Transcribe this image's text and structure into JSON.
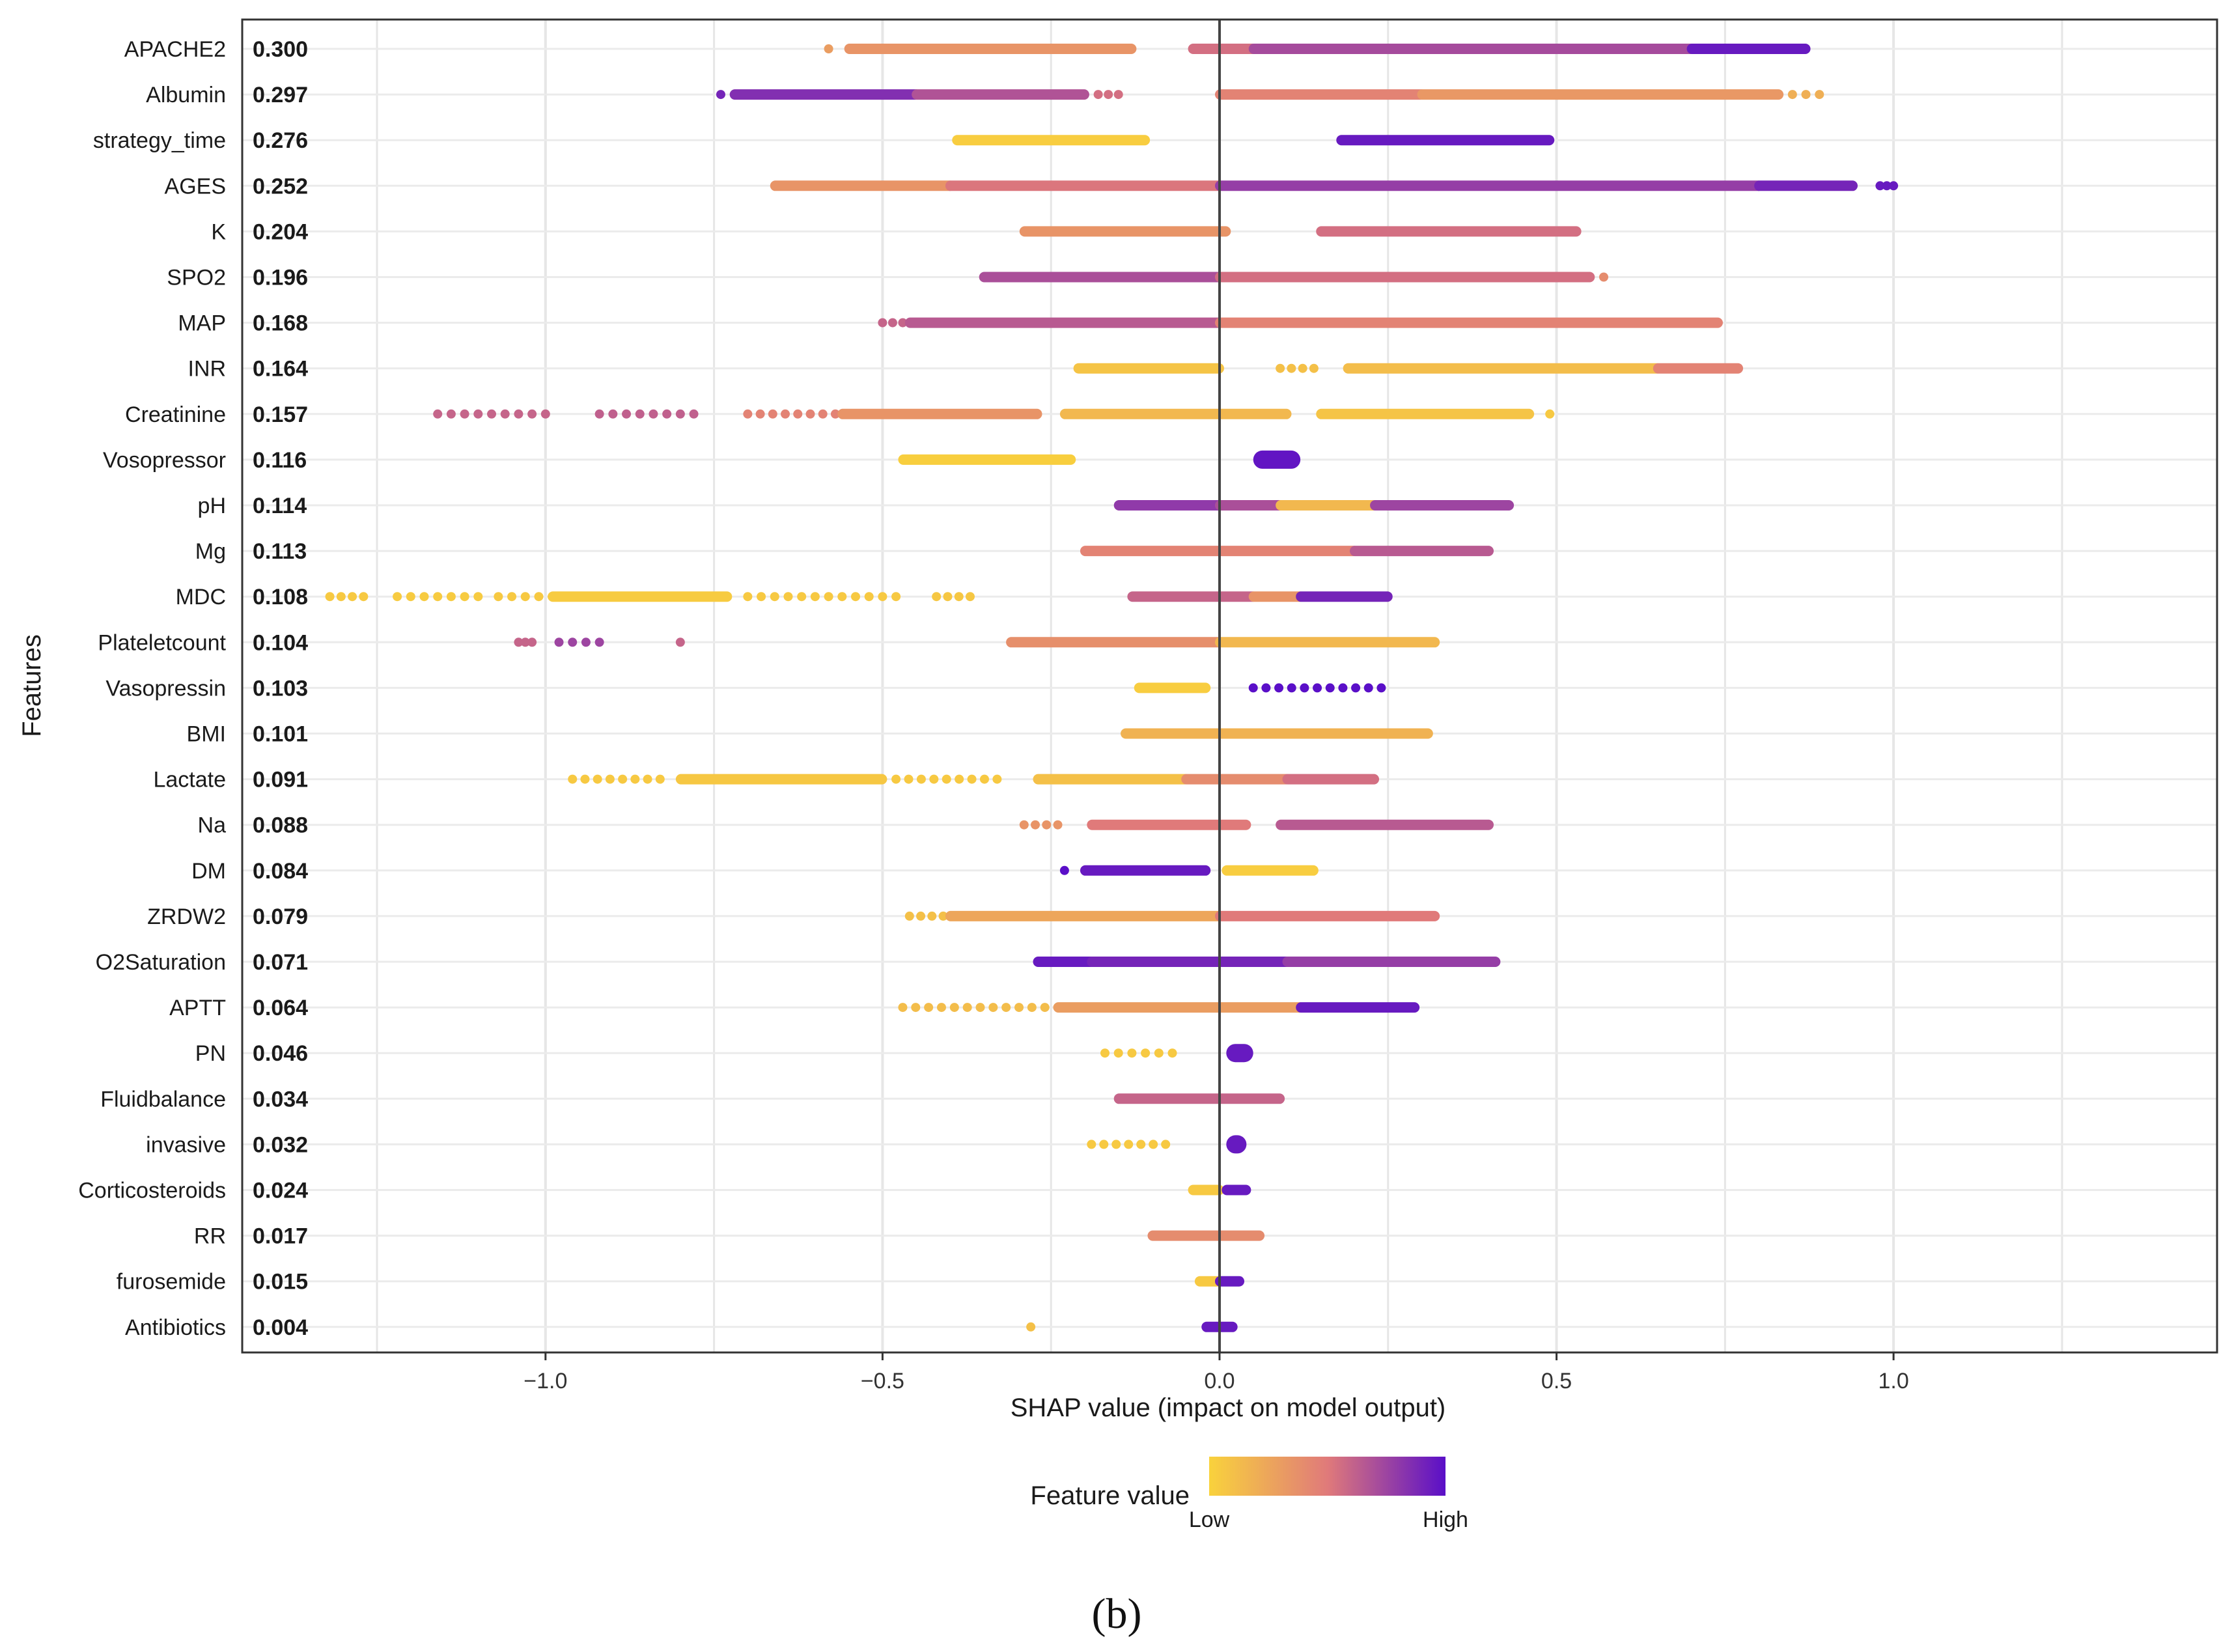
{
  "chart_data": {
    "type": "scatter",
    "subtype": "shap-beeswarm",
    "xlabel": "SHAP value (impact on model output)",
    "ylabel": "Features",
    "xlim": [
      -1.45,
      1.48
    ],
    "xticks": [
      -1.0,
      -0.5,
      0.0,
      0.5,
      1.0
    ],
    "xtick_labels": [
      "−1.0",
      "−0.5",
      "0.0",
      "0.5",
      "1.0"
    ],
    "vertical_line_at": 0.0,
    "grid": true,
    "color_scale": {
      "low": "#f9d23c",
      "mid": "#e07a7a",
      "high": "#5a0fc8"
    },
    "legend": {
      "title": "Feature value",
      "low_label": "Low",
      "high_label": "High",
      "placement": "bottom-center"
    },
    "panel_label": "(b)",
    "features": [
      {
        "name": "APACHE2",
        "importance": "0.300",
        "segments": [
          {
            "from": -0.58,
            "to": -0.58,
            "v": 0.3,
            "kind": "dot"
          },
          {
            "from": -0.55,
            "to": -0.13,
            "v": 0.35
          },
          {
            "from": -0.04,
            "to": 0.05,
            "v": 0.55
          },
          {
            "from": 0.05,
            "to": 0.7,
            "v": 0.72
          },
          {
            "from": 0.7,
            "to": 0.87,
            "v": 0.95
          }
        ]
      },
      {
        "name": "Albumin",
        "importance": "0.297",
        "segments": [
          {
            "from": -0.74,
            "to": -0.74,
            "v": 0.9,
            "kind": "dot"
          },
          {
            "from": -0.72,
            "to": -0.45,
            "v": 0.85
          },
          {
            "from": -0.45,
            "to": -0.2,
            "v": 0.68
          },
          {
            "from": -0.18,
            "to": -0.15,
            "v": 0.55,
            "kind": "dots"
          },
          {
            "from": 0.0,
            "to": 0.3,
            "v": 0.45
          },
          {
            "from": 0.3,
            "to": 0.83,
            "v": 0.33
          },
          {
            "from": 0.85,
            "to": 0.89,
            "v": 0.2,
            "kind": "dots"
          }
        ]
      },
      {
        "name": "strategy_time",
        "importance": "0.276",
        "segments": [
          {
            "from": -0.39,
            "to": -0.11,
            "v": 0.03
          },
          {
            "from": 0.18,
            "to": 0.49,
            "v": 0.95
          }
        ]
      },
      {
        "name": "AGES",
        "importance": "0.252",
        "segments": [
          {
            "from": -0.66,
            "to": -0.4,
            "v": 0.35
          },
          {
            "from": -0.4,
            "to": 0.0,
            "v": 0.52
          },
          {
            "from": 0.0,
            "to": 0.8,
            "v": 0.78
          },
          {
            "from": 0.8,
            "to": 0.94,
            "v": 0.9
          },
          {
            "from": 0.98,
            "to": 1.0,
            "v": 0.95,
            "kind": "dots"
          }
        ]
      },
      {
        "name": "K",
        "importance": "0.204",
        "segments": [
          {
            "from": -0.29,
            "to": 0.01,
            "v": 0.35
          },
          {
            "from": 0.15,
            "to": 0.53,
            "v": 0.55
          }
        ]
      },
      {
        "name": "SPO2",
        "importance": "0.196",
        "segments": [
          {
            "from": -0.35,
            "to": 0.0,
            "v": 0.7
          },
          {
            "from": 0.0,
            "to": 0.55,
            "v": 0.55
          },
          {
            "from": 0.57,
            "to": 0.57,
            "v": 0.4,
            "kind": "dot"
          }
        ]
      },
      {
        "name": "MAP",
        "importance": "0.168",
        "segments": [
          {
            "from": -0.5,
            "to": -0.47,
            "v": 0.6,
            "kind": "dots"
          },
          {
            "from": -0.46,
            "to": 0.0,
            "v": 0.65
          },
          {
            "from": 0.0,
            "to": 0.74,
            "v": 0.45
          }
        ]
      },
      {
        "name": "INR",
        "importance": "0.164",
        "segments": [
          {
            "from": -0.21,
            "to": 0.0,
            "v": 0.08
          },
          {
            "from": 0.09,
            "to": 0.14,
            "v": 0.1,
            "kind": "dots"
          },
          {
            "from": 0.19,
            "to": 0.65,
            "v": 0.12
          },
          {
            "from": 0.65,
            "to": 0.77,
            "v": 0.45
          }
        ]
      },
      {
        "name": "Creatinine",
        "importance": "0.157",
        "segments": [
          {
            "from": -1.16,
            "to": -1.0,
            "v": 0.6,
            "kind": "dots"
          },
          {
            "from": -0.92,
            "to": -0.78,
            "v": 0.62,
            "kind": "dots"
          },
          {
            "from": -0.7,
            "to": -0.57,
            "v": 0.45,
            "kind": "dots"
          },
          {
            "from": -0.56,
            "to": -0.27,
            "v": 0.35
          },
          {
            "from": -0.23,
            "to": 0.1,
            "v": 0.15
          },
          {
            "from": 0.15,
            "to": 0.46,
            "v": 0.08
          },
          {
            "from": 0.49,
            "to": 0.49,
            "v": 0.05,
            "kind": "dot"
          }
        ]
      },
      {
        "name": "Vosopressor",
        "importance": "0.116",
        "segments": [
          {
            "from": -0.47,
            "to": -0.22,
            "v": 0.02
          },
          {
            "from": 0.05,
            "to": 0.12,
            "v": 0.97,
            "kind": "blob"
          }
        ]
      },
      {
        "name": "pH",
        "importance": "0.114",
        "segments": [
          {
            "from": -0.15,
            "to": 0.0,
            "v": 0.8
          },
          {
            "from": 0.0,
            "to": 0.09,
            "v": 0.7
          },
          {
            "from": 0.09,
            "to": 0.23,
            "v": 0.15
          },
          {
            "from": 0.23,
            "to": 0.43,
            "v": 0.75
          }
        ]
      },
      {
        "name": "Mg",
        "importance": "0.113",
        "segments": [
          {
            "from": -0.2,
            "to": 0.2,
            "v": 0.45
          },
          {
            "from": 0.2,
            "to": 0.4,
            "v": 0.65
          }
        ]
      },
      {
        "name": "MDC",
        "importance": "0.108",
        "segments": [
          {
            "from": -1.32,
            "to": -1.27,
            "v": 0.05,
            "kind": "dots"
          },
          {
            "from": -1.22,
            "to": -1.1,
            "v": 0.04,
            "kind": "dots"
          },
          {
            "from": -1.07,
            "to": -0.99,
            "v": 0.05,
            "kind": "dots"
          },
          {
            "from": -0.99,
            "to": -0.73,
            "v": 0.04
          },
          {
            "from": -0.7,
            "to": -0.48,
            "v": 0.05,
            "kind": "dots"
          },
          {
            "from": -0.42,
            "to": -0.37,
            "v": 0.06,
            "kind": "dots"
          },
          {
            "from": -0.13,
            "to": 0.05,
            "v": 0.6
          },
          {
            "from": 0.05,
            "to": 0.12,
            "v": 0.35
          },
          {
            "from": 0.12,
            "to": 0.25,
            "v": 0.9
          }
        ]
      },
      {
        "name": "Plateletcount",
        "importance": "0.104",
        "segments": [
          {
            "from": -1.04,
            "to": -1.02,
            "v": 0.6,
            "kind": "dots"
          },
          {
            "from": -0.98,
            "to": -0.92,
            "v": 0.75,
            "kind": "dots"
          },
          {
            "from": -0.8,
            "to": -0.8,
            "v": 0.6,
            "kind": "dot"
          },
          {
            "from": -0.31,
            "to": 0.0,
            "v": 0.38
          },
          {
            "from": 0.0,
            "to": 0.32,
            "v": 0.15
          }
        ]
      },
      {
        "name": "Vasopressin",
        "importance": "0.103",
        "segments": [
          {
            "from": -0.12,
            "to": -0.02,
            "v": 0.03
          },
          {
            "from": 0.05,
            "to": 0.24,
            "v": 1.0,
            "kind": "dots"
          }
        ]
      },
      {
        "name": "BMI",
        "importance": "0.101",
        "segments": [
          {
            "from": -0.14,
            "to": 0.31,
            "v": 0.18
          }
        ]
      },
      {
        "name": "Lactate",
        "importance": "0.091",
        "segments": [
          {
            "from": -0.96,
            "to": -0.83,
            "v": 0.05,
            "kind": "dots"
          },
          {
            "from": -0.8,
            "to": -0.5,
            "v": 0.06
          },
          {
            "from": -0.48,
            "to": -0.33,
            "v": 0.05,
            "kind": "dots"
          },
          {
            "from": -0.27,
            "to": -0.05,
            "v": 0.1
          },
          {
            "from": -0.05,
            "to": 0.1,
            "v": 0.4
          },
          {
            "from": 0.1,
            "to": 0.23,
            "v": 0.55
          }
        ]
      },
      {
        "name": "Na",
        "importance": "0.088",
        "segments": [
          {
            "from": -0.29,
            "to": -0.24,
            "v": 0.35,
            "kind": "dots"
          },
          {
            "from": -0.19,
            "to": 0.04,
            "v": 0.5
          },
          {
            "from": 0.09,
            "to": 0.4,
            "v": 0.65
          }
        ]
      },
      {
        "name": "DM",
        "importance": "0.084",
        "segments": [
          {
            "from": -0.23,
            "to": -0.23,
            "v": 1.0,
            "kind": "dot"
          },
          {
            "from": -0.2,
            "to": -0.02,
            "v": 0.95
          },
          {
            "from": 0.01,
            "to": 0.14,
            "v": 0.03
          }
        ]
      },
      {
        "name": "ZRDW2",
        "importance": "0.079",
        "segments": [
          {
            "from": -0.46,
            "to": -0.41,
            "v": 0.1,
            "kind": "dots"
          },
          {
            "from": -0.4,
            "to": 0.0,
            "v": 0.25
          },
          {
            "from": 0.0,
            "to": 0.32,
            "v": 0.5
          }
        ]
      },
      {
        "name": "O2Saturation",
        "importance": "0.071",
        "segments": [
          {
            "from": -0.27,
            "to": -0.19,
            "v": 0.95
          },
          {
            "from": -0.19,
            "to": 0.1,
            "v": 0.9
          },
          {
            "from": 0.1,
            "to": 0.41,
            "v": 0.78
          }
        ]
      },
      {
        "name": "APTT",
        "importance": "0.064",
        "segments": [
          {
            "from": -0.47,
            "to": -0.24,
            "v": 0.12,
            "kind": "dots"
          },
          {
            "from": -0.24,
            "to": 0.12,
            "v": 0.3
          },
          {
            "from": 0.12,
            "to": 0.29,
            "v": 0.95
          }
        ]
      },
      {
        "name": "PN",
        "importance": "0.046",
        "segments": [
          {
            "from": -0.17,
            "to": -0.07,
            "v": 0.05,
            "kind": "dots"
          },
          {
            "from": 0.01,
            "to": 0.05,
            "v": 0.95,
            "kind": "blob"
          }
        ]
      },
      {
        "name": "Fluidbalance",
        "importance": "0.034",
        "segments": [
          {
            "from": -0.15,
            "to": 0.09,
            "v": 0.6
          }
        ]
      },
      {
        "name": "invasive",
        "importance": "0.032",
        "segments": [
          {
            "from": -0.19,
            "to": -0.08,
            "v": 0.05,
            "kind": "dots"
          },
          {
            "from": 0.01,
            "to": 0.04,
            "v": 0.95,
            "kind": "blob"
          }
        ]
      },
      {
        "name": "Corticosteroids",
        "importance": "0.024",
        "segments": [
          {
            "from": -0.04,
            "to": 0.0,
            "v": 0.05
          },
          {
            "from": 0.01,
            "to": 0.04,
            "v": 0.95
          }
        ]
      },
      {
        "name": "RR",
        "importance": "0.017",
        "segments": [
          {
            "from": -0.1,
            "to": 0.06,
            "v": 0.4
          }
        ]
      },
      {
        "name": "furosemide",
        "importance": "0.015",
        "segments": [
          {
            "from": -0.03,
            "to": 0.0,
            "v": 0.05
          },
          {
            "from": 0.0,
            "to": 0.03,
            "v": 0.95
          }
        ]
      },
      {
        "name": "Antibiotics",
        "importance": "0.004",
        "segments": [
          {
            "from": -0.28,
            "to": -0.28,
            "v": 0.1,
            "kind": "dot"
          },
          {
            "from": -0.02,
            "to": 0.02,
            "v": 0.95
          }
        ]
      }
    ]
  }
}
